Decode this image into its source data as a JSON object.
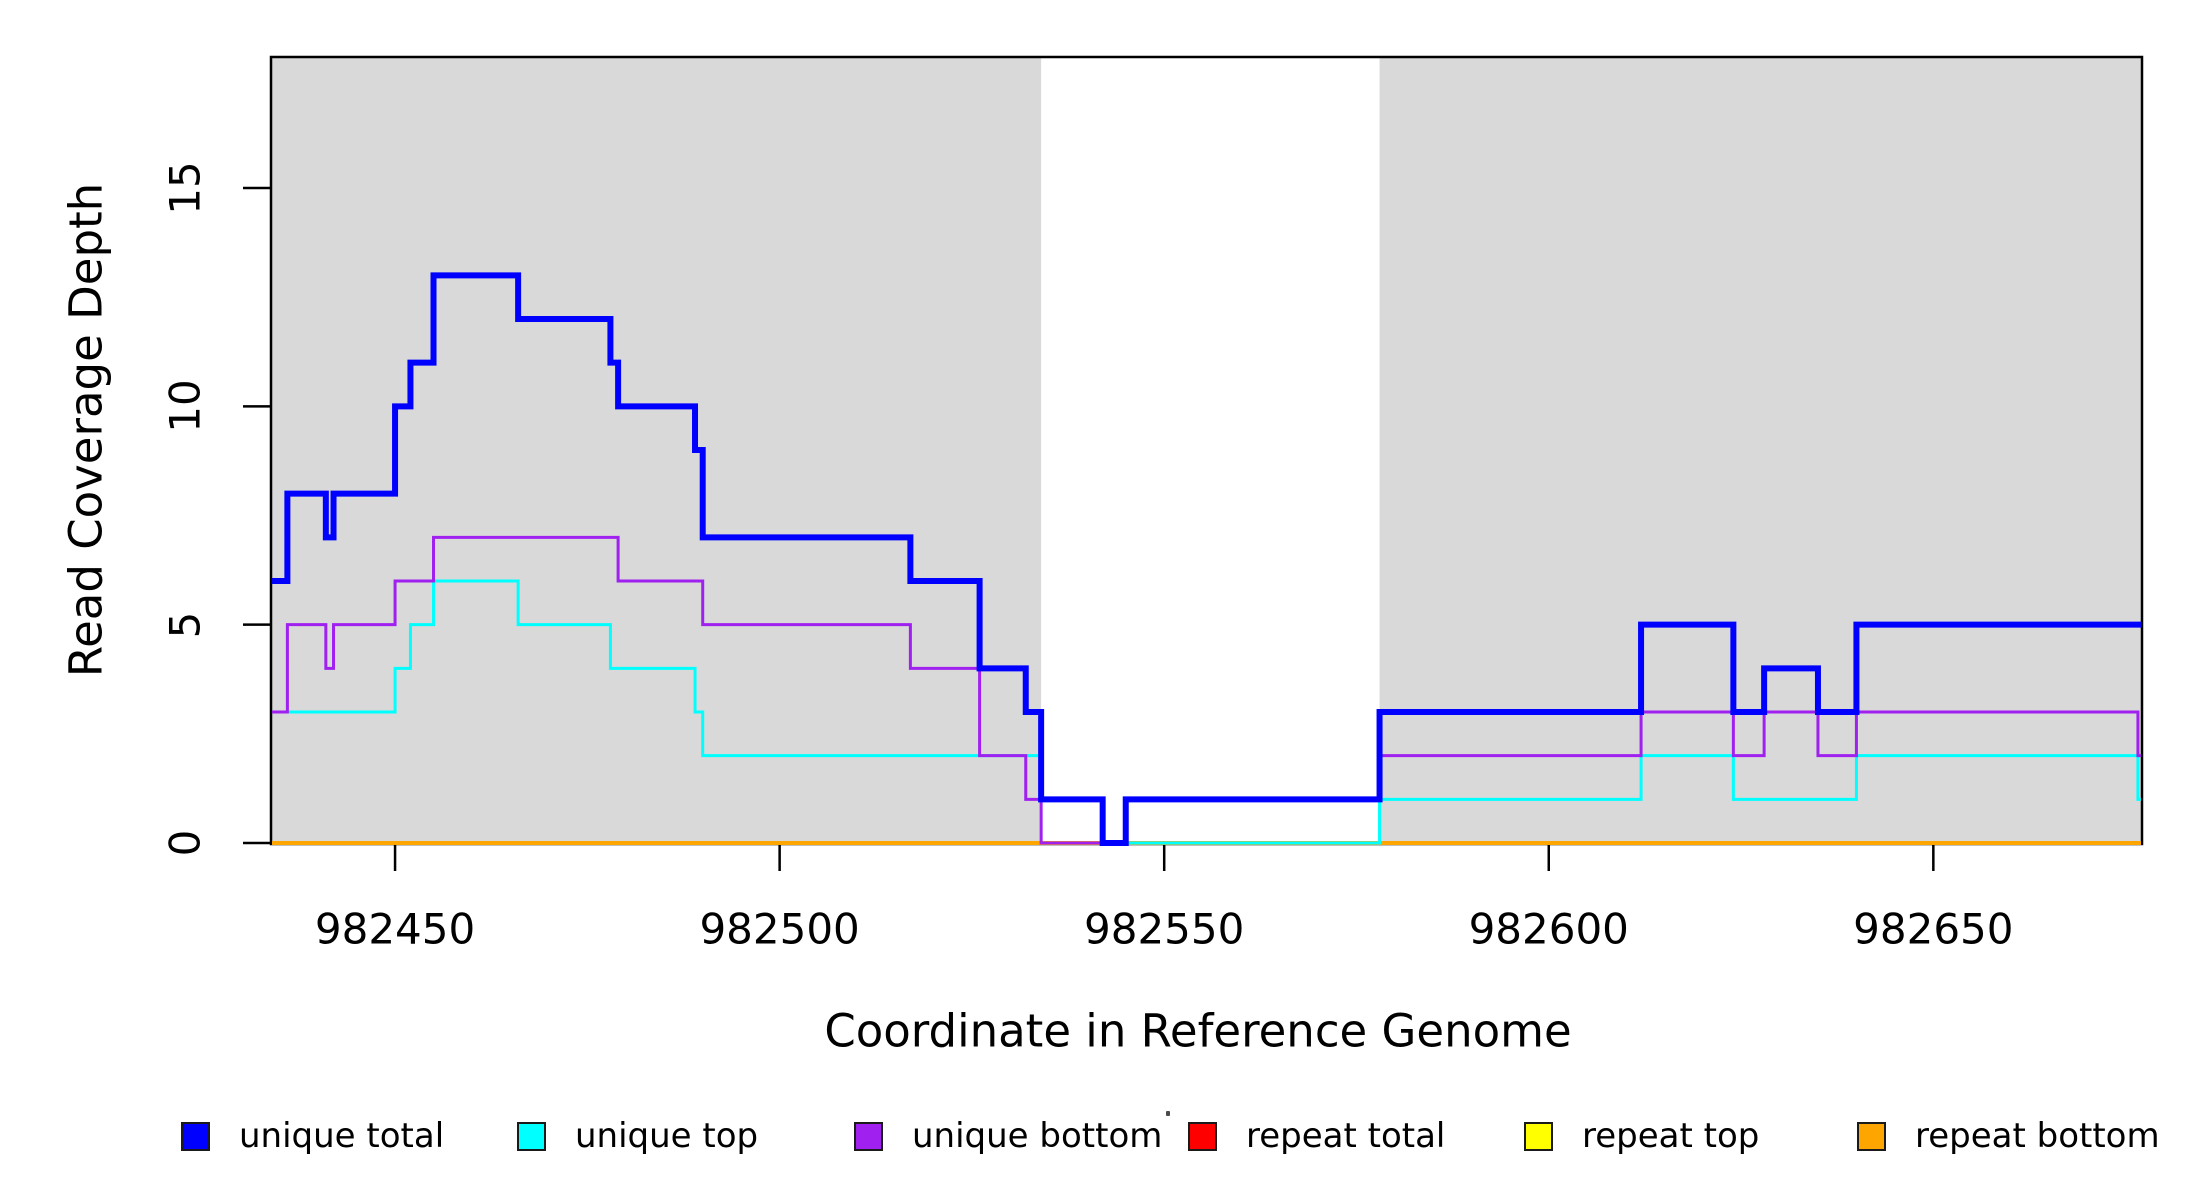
{
  "chart_data": {
    "type": "line",
    "subtype": "step-function-coverage-plot",
    "title": "",
    "xlabel": "Coordinate in Reference Genome",
    "ylabel": "Read Coverage Depth",
    "x_domain": [
      982434,
      982677
    ],
    "y_domain": [
      0,
      18
    ],
    "grid": "off",
    "background_color": "#FFFFFF",
    "plot_box_color": "#000000",
    "x_ticks": [
      {
        "value": 982450,
        "label": "982450"
      },
      {
        "value": 982500,
        "label": "982500"
      },
      {
        "value": 982550,
        "label": "982550"
      },
      {
        "value": 982600,
        "label": "982600"
      },
      {
        "value": 982650,
        "label": "982650"
      }
    ],
    "y_ticks": [
      {
        "value": 0,
        "label": "0"
      },
      {
        "value": 5,
        "label": "5"
      },
      {
        "value": 10,
        "label": "10"
      },
      {
        "value": 15,
        "label": "15"
      }
    ],
    "shaded_regions": {
      "color": "#D9D9D9",
      "ranges": [
        {
          "start": 982434,
          "end": 982534
        },
        {
          "start": 982578,
          "end": 982677
        }
      ]
    },
    "series": [
      {
        "name": "repeat total",
        "color": "#FF0000",
        "line_width": 3,
        "steps": [
          [
            982434,
            0
          ]
        ]
      },
      {
        "name": "repeat top",
        "color": "#FFFF00",
        "line_width": 3,
        "steps": [
          [
            982434,
            0
          ]
        ]
      },
      {
        "name": "repeat bottom",
        "color": "#FFA500",
        "line_width": 4,
        "steps": [
          [
            982434,
            0
          ]
        ]
      },
      {
        "name": "unique top",
        "color": "#00FFFF",
        "line_width": 3,
        "steps": [
          [
            982434,
            3
          ],
          [
            982450,
            4
          ],
          [
            982452,
            5
          ],
          [
            982455,
            6
          ],
          [
            982466,
            5
          ],
          [
            982478,
            4
          ],
          [
            982489,
            3
          ],
          [
            982490,
            2
          ],
          [
            982534,
            1
          ],
          [
            982542,
            0
          ],
          [
            982578,
            1
          ],
          [
            982612,
            2
          ],
          [
            982624,
            1
          ],
          [
            982640,
            2
          ],
          [
            982676.6,
            1
          ]
        ]
      },
      {
        "name": "unique bottom",
        "color": "#A020F0",
        "line_width": 3,
        "steps": [
          [
            982434,
            3
          ],
          [
            982436,
            5
          ],
          [
            982441,
            4
          ],
          [
            982442,
            5
          ],
          [
            982450,
            6
          ],
          [
            982455,
            7
          ],
          [
            982479,
            6
          ],
          [
            982490,
            5
          ],
          [
            982517,
            4
          ],
          [
            982526,
            2
          ],
          [
            982532,
            1
          ],
          [
            982534,
            0
          ],
          [
            982545,
            1
          ],
          [
            982578,
            2
          ],
          [
            982612,
            3
          ],
          [
            982624,
            2
          ],
          [
            982628,
            3
          ],
          [
            982635,
            2
          ],
          [
            982640,
            3
          ],
          [
            982676.6,
            2
          ]
        ]
      },
      {
        "name": "unique total",
        "color": "#0000FF",
        "line_width": 6,
        "steps": [
          [
            982434,
            6
          ],
          [
            982436,
            8
          ],
          [
            982441,
            7
          ],
          [
            982442,
            8
          ],
          [
            982450,
            10
          ],
          [
            982452,
            11
          ],
          [
            982455,
            13
          ],
          [
            982466,
            12
          ],
          [
            982478,
            11
          ],
          [
            982479,
            10
          ],
          [
            982489,
            9
          ],
          [
            982490,
            7
          ],
          [
            982517,
            6
          ],
          [
            982526,
            4
          ],
          [
            982532,
            3
          ],
          [
            982534,
            1
          ],
          [
            982542,
            0
          ],
          [
            982545,
            1
          ],
          [
            982578,
            3
          ],
          [
            982612,
            5
          ],
          [
            982624,
            3
          ],
          [
            982628,
            4
          ],
          [
            982635,
            3
          ],
          [
            982640,
            5
          ]
        ]
      }
    ],
    "legend": {
      "position": "bottom",
      "items": [
        {
          "label": "unique total",
          "color": "#0000FF"
        },
        {
          "label": "unique top",
          "color": "#00FFFF"
        },
        {
          "label": "unique bottom",
          "color": "#A020F0"
        },
        {
          "label": "repeat total",
          "color": "#FF0000"
        },
        {
          "label": "repeat top",
          "color": "#FFFF00"
        },
        {
          "label": "repeat bottom",
          "color": "#FFA500"
        }
      ]
    }
  }
}
